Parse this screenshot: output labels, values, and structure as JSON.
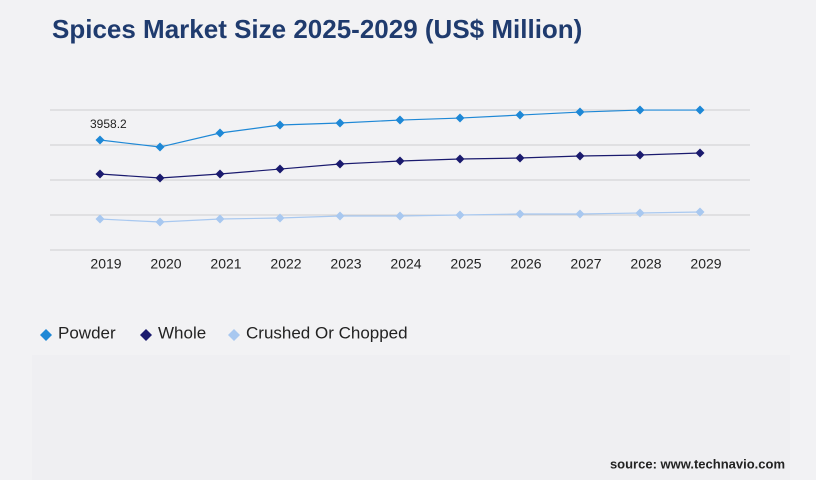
{
  "chart_data": {
    "type": "line",
    "title": "Spices Market Size 2025-2029 (US$ Million)",
    "source": "source: www.technavio.com",
    "categories": [
      "2019",
      "2020",
      "2021",
      "2022",
      "2023",
      "2024",
      "2025",
      "2026",
      "2027",
      "2028",
      "2029"
    ],
    "series": [
      {
        "name": "Powder",
        "color": "#1e88d6",
        "values": [
          3958.2,
          3706,
          4210,
          4498,
          4570,
          4677,
          4749,
          4857,
          4965,
          5037,
          5037
        ]
      },
      {
        "name": "Whole",
        "color": "#1a1a6e",
        "values": [
          2735,
          2591,
          2735,
          2914,
          3094,
          3202,
          3274,
          3310,
          3382,
          3418,
          3490
        ]
      },
      {
        "name": "Crushed Or Chopped",
        "color": "#a8c8f0",
        "values": [
          1115,
          1007,
          1115,
          1151,
          1223,
          1223,
          1259,
          1295,
          1295,
          1331,
          1367
        ]
      }
    ],
    "ylim": [
      0,
      5100
    ]
  }
}
